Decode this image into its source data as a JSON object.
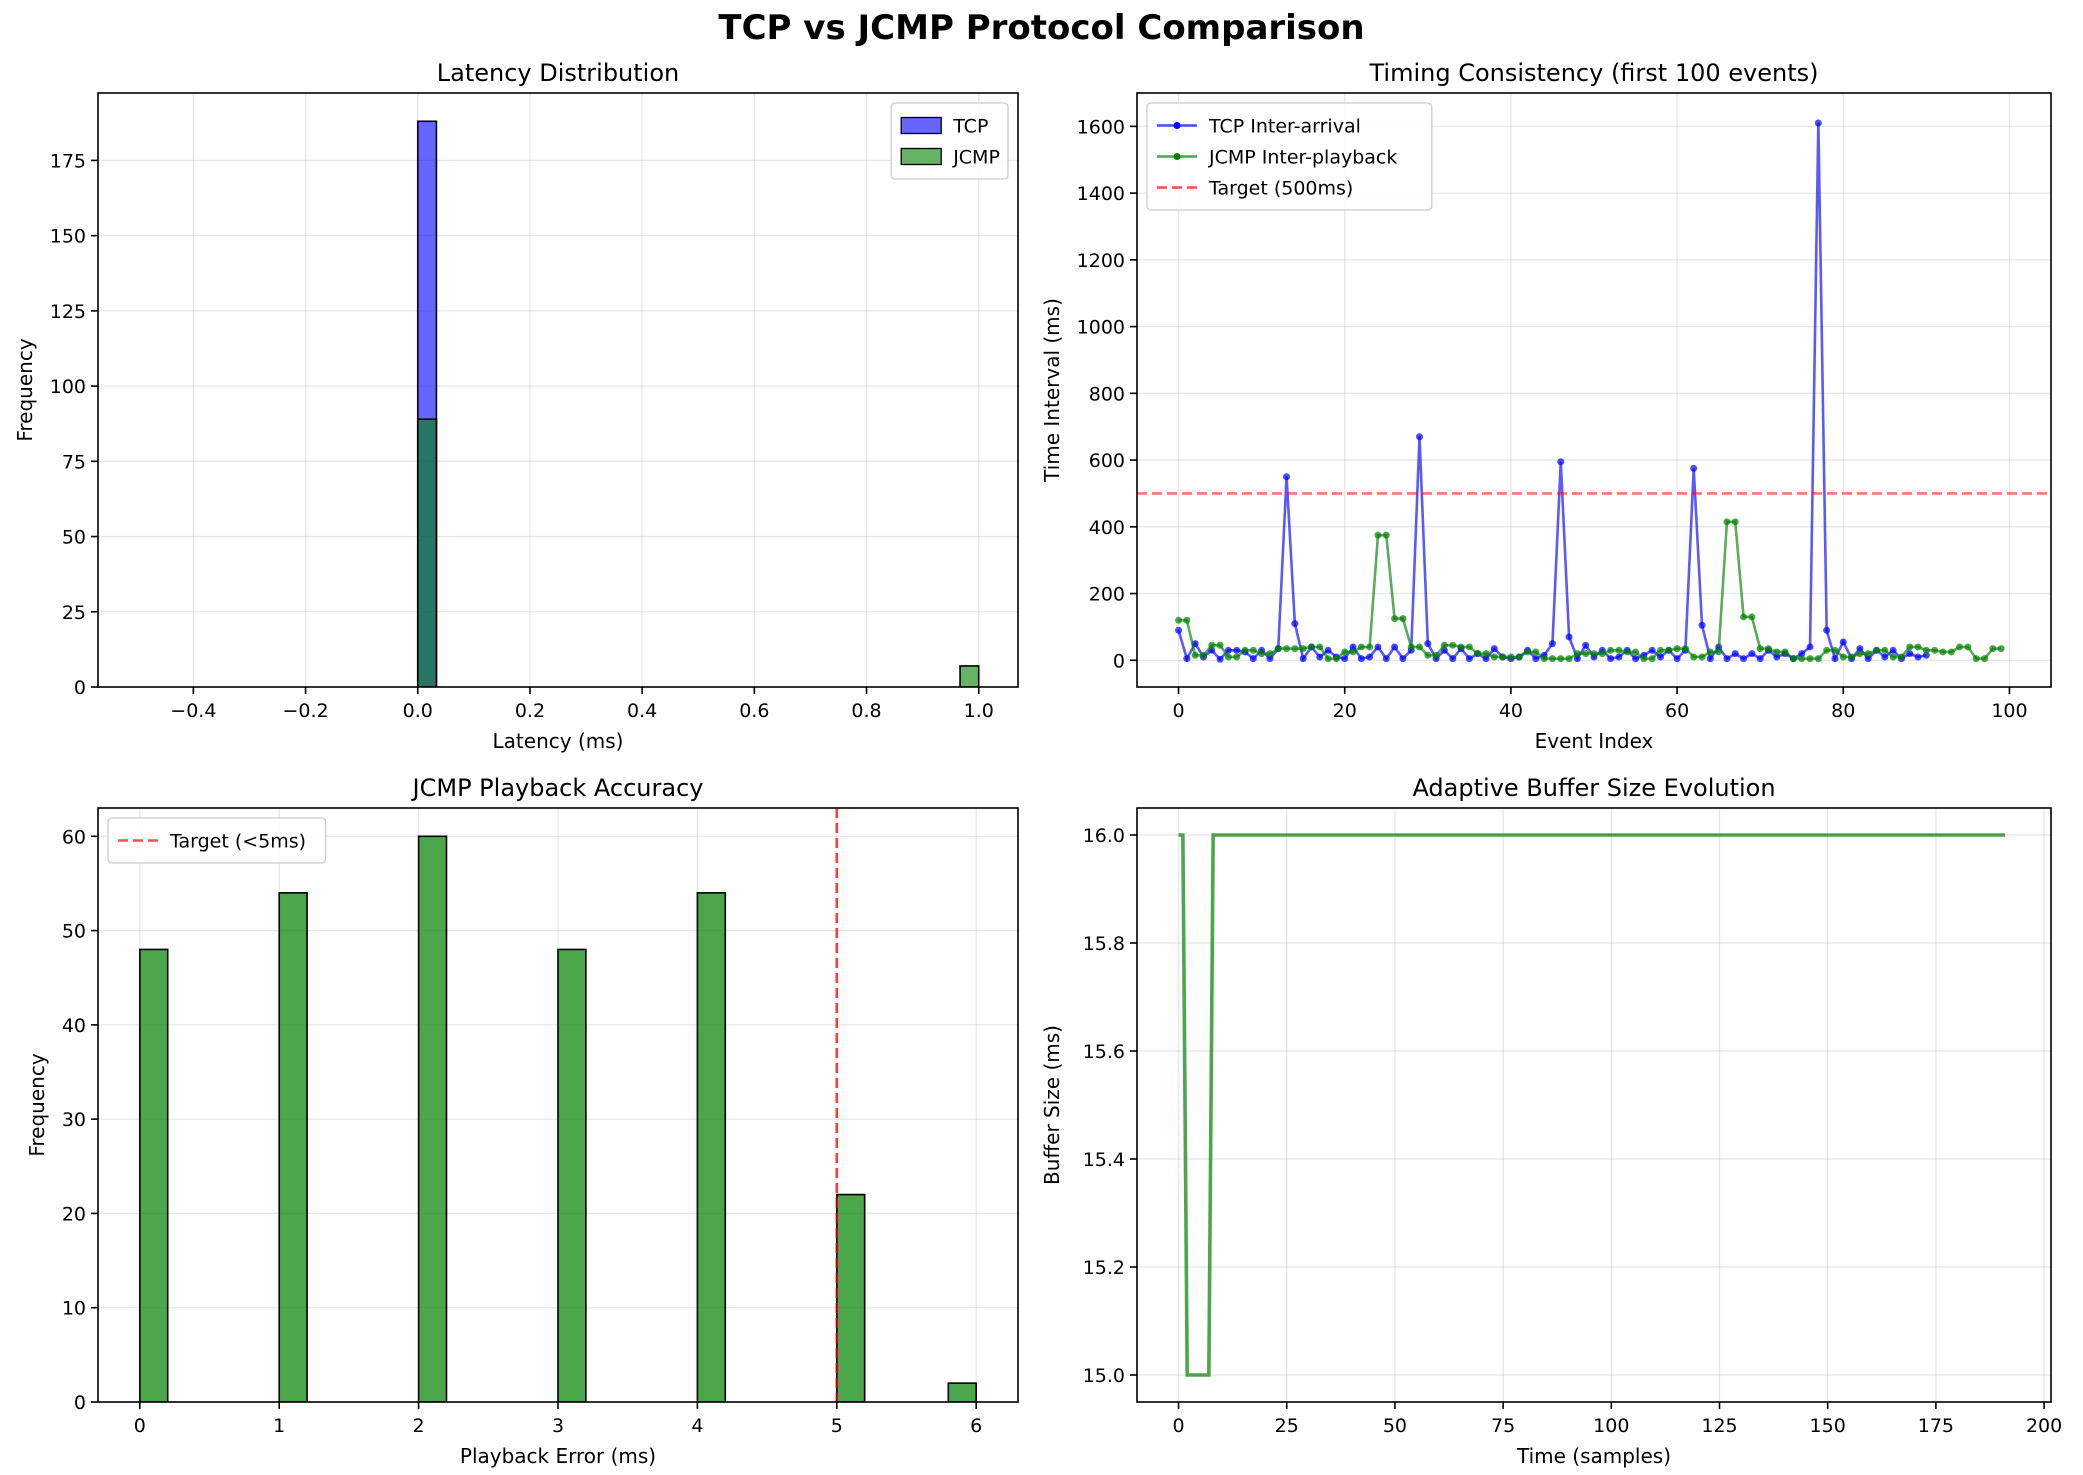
{
  "suptitle": "TCP vs JCMP Protocol Comparison",
  "colors": {
    "tcp": "#0000ff",
    "jcmp": "#008000",
    "target": "#ff0000"
  },
  "chart_data": [
    {
      "id": "latency",
      "type": "bar",
      "title": "Latency Distribution",
      "xlabel": "Latency (ms)",
      "ylabel": "Frequency",
      "xlim": [
        -0.57,
        1.07
      ],
      "ylim": [
        0,
        197.4
      ],
      "xticks": [
        -0.4,
        -0.2,
        0.0,
        0.2,
        0.4,
        0.6,
        0.8,
        1.0
      ],
      "xtick_labels": [
        "−0.4",
        "−0.2",
        "0.0",
        "0.2",
        "0.4",
        "0.6",
        "0.8",
        "1.0"
      ],
      "yticks": [
        0,
        25,
        50,
        75,
        100,
        125,
        150,
        175
      ],
      "ytick_labels": [
        "0",
        "25",
        "50",
        "75",
        "100",
        "125",
        "150",
        "175"
      ],
      "grid": true,
      "legend_position": "top-right",
      "series": [
        {
          "name": "TCP",
          "color": "#0000ff",
          "alpha": 0.6,
          "bins": [
            {
              "x0": 0.0,
              "x1": 0.0333,
              "count": 188
            }
          ]
        },
        {
          "name": "JCMP",
          "color": "#008000",
          "alpha": 0.6,
          "bins": [
            {
              "x0": 0.0,
              "x1": 0.0333,
              "count": 89
            },
            {
              "x0": 0.9667,
              "x1": 1.0,
              "count": 7
            }
          ]
        }
      ]
    },
    {
      "id": "timing",
      "type": "line",
      "title": "Timing Consistency (first 100 events)",
      "xlabel": "Event Index",
      "ylabel": "Time Interval (ms)",
      "xlim": [
        -5,
        105
      ],
      "ylim": [
        -80,
        1700
      ],
      "xticks": [
        0,
        20,
        40,
        60,
        80,
        100
      ],
      "xtick_labels": [
        "0",
        "20",
        "40",
        "60",
        "80",
        "100"
      ],
      "yticks": [
        0,
        200,
        400,
        600,
        800,
        1000,
        1200,
        1400,
        1600
      ],
      "ytick_labels": [
        "0",
        "200",
        "400",
        "600",
        "800",
        "1000",
        "1200",
        "1400",
        "1600"
      ],
      "grid": true,
      "legend_position": "top-left",
      "series": [
        {
          "name": "TCP Inter-arrival",
          "color": "#0000ff",
          "values": [
            90,
            5,
            50,
            10,
            30,
            3,
            30,
            30,
            25,
            5,
            30,
            5,
            35,
            550,
            110,
            5,
            40,
            10,
            30,
            10,
            5,
            40,
            5,
            10,
            40,
            5,
            40,
            5,
            30,
            670,
            50,
            5,
            30,
            5,
            35,
            5,
            20,
            5,
            35,
            10,
            5,
            10,
            30,
            5,
            15,
            50,
            595,
            70,
            5,
            45,
            10,
            30,
            5,
            10,
            30,
            5,
            15,
            30,
            10,
            30,
            5,
            30,
            575,
            105,
            5,
            40,
            5,
            20,
            5,
            20,
            5,
            30,
            10,
            20,
            5,
            20,
            40,
            1610,
            90,
            5,
            55,
            5,
            35,
            5,
            30,
            10,
            30,
            5,
            20,
            10,
            15
          ]
        },
        {
          "name": "JCMP Inter-playback",
          "color": "#008000",
          "values": [
            120,
            120,
            15,
            15,
            45,
            45,
            10,
            10,
            30,
            30,
            20,
            20,
            35,
            35,
            35,
            35,
            40,
            40,
            5,
            5,
            25,
            25,
            40,
            40,
            375,
            375,
            125,
            125,
            40,
            40,
            15,
            15,
            45,
            45,
            40,
            40,
            20,
            20,
            10,
            10,
            10,
            10,
            25,
            25,
            5,
            5,
            5,
            5,
            20,
            20,
            20,
            20,
            30,
            30,
            25,
            25,
            5,
            5,
            30,
            30,
            35,
            35,
            10,
            10,
            25,
            25,
            415,
            415,
            130,
            130,
            35,
            35,
            25,
            25,
            5,
            5,
            5,
            5,
            30,
            30,
            10,
            10,
            20,
            20,
            30,
            30,
            10,
            10,
            40,
            40,
            30,
            30,
            25,
            25,
            40,
            40,
            5,
            5,
            35,
            35
          ]
        },
        {
          "name": "Target (500ms)",
          "color": "#ff0000",
          "style": "dashed",
          "y": 500
        }
      ]
    },
    {
      "id": "accuracy",
      "type": "bar",
      "title": "JCMP Playback Accuracy",
      "xlabel": "Playback Error (ms)",
      "ylabel": "Frequency",
      "xlim": [
        -0.3,
        6.3
      ],
      "ylim": [
        0,
        63
      ],
      "xticks": [
        0,
        1,
        2,
        3,
        4,
        5,
        6
      ],
      "xtick_labels": [
        "0",
        "1",
        "2",
        "3",
        "4",
        "5",
        "6"
      ],
      "yticks": [
        0,
        10,
        20,
        30,
        40,
        50,
        60
      ],
      "ytick_labels": [
        "0",
        "10",
        "20",
        "30",
        "40",
        "50",
        "60"
      ],
      "grid": true,
      "legend_position": "top-left",
      "series": [
        {
          "name": "",
          "color": "#008000",
          "alpha": 0.7,
          "bins": [
            {
              "x0": 0.0,
              "x1": 0.2,
              "count": 48
            },
            {
              "x0": 1.0,
              "x1": 1.2,
              "count": 54
            },
            {
              "x0": 2.0,
              "x1": 2.2,
              "count": 60
            },
            {
              "x0": 3.0,
              "x1": 3.2,
              "count": 48
            },
            {
              "x0": 4.0,
              "x1": 4.2,
              "count": 54
            },
            {
              "x0": 5.0,
              "x1": 5.2,
              "count": 22
            },
            {
              "x0": 5.8,
              "x1": 6.0,
              "count": 2
            }
          ]
        },
        {
          "name": "Target (<5ms)",
          "color": "#ff0000",
          "style": "dashed",
          "x": 5
        }
      ]
    },
    {
      "id": "buffer",
      "type": "line",
      "title": "Adaptive Buffer Size Evolution",
      "xlabel": "Time (samples)",
      "ylabel": "Buffer Size (ms)",
      "xlim": [
        -9.6,
        201.6
      ],
      "ylim": [
        14.95,
        16.05
      ],
      "xticks": [
        0,
        25,
        50,
        75,
        100,
        125,
        150,
        175,
        200
      ],
      "xtick_labels": [
        "0",
        "25",
        "50",
        "75",
        "100",
        "125",
        "150",
        "175",
        "200"
      ],
      "yticks": [
        15.0,
        15.2,
        15.4,
        15.6,
        15.8,
        16.0
      ],
      "ytick_labels": [
        "15.0",
        "15.2",
        "15.4",
        "15.6",
        "15.8",
        "16.0"
      ],
      "grid": true,
      "legend_position": "none",
      "series": [
        {
          "name": "",
          "color": "#008000",
          "points": [
            [
              0,
              16.0
            ],
            [
              1,
              16.0
            ],
            [
              2,
              15.0
            ],
            [
              7,
              15.0
            ],
            [
              8,
              16.0
            ],
            [
              191,
              16.0
            ]
          ]
        }
      ]
    }
  ]
}
